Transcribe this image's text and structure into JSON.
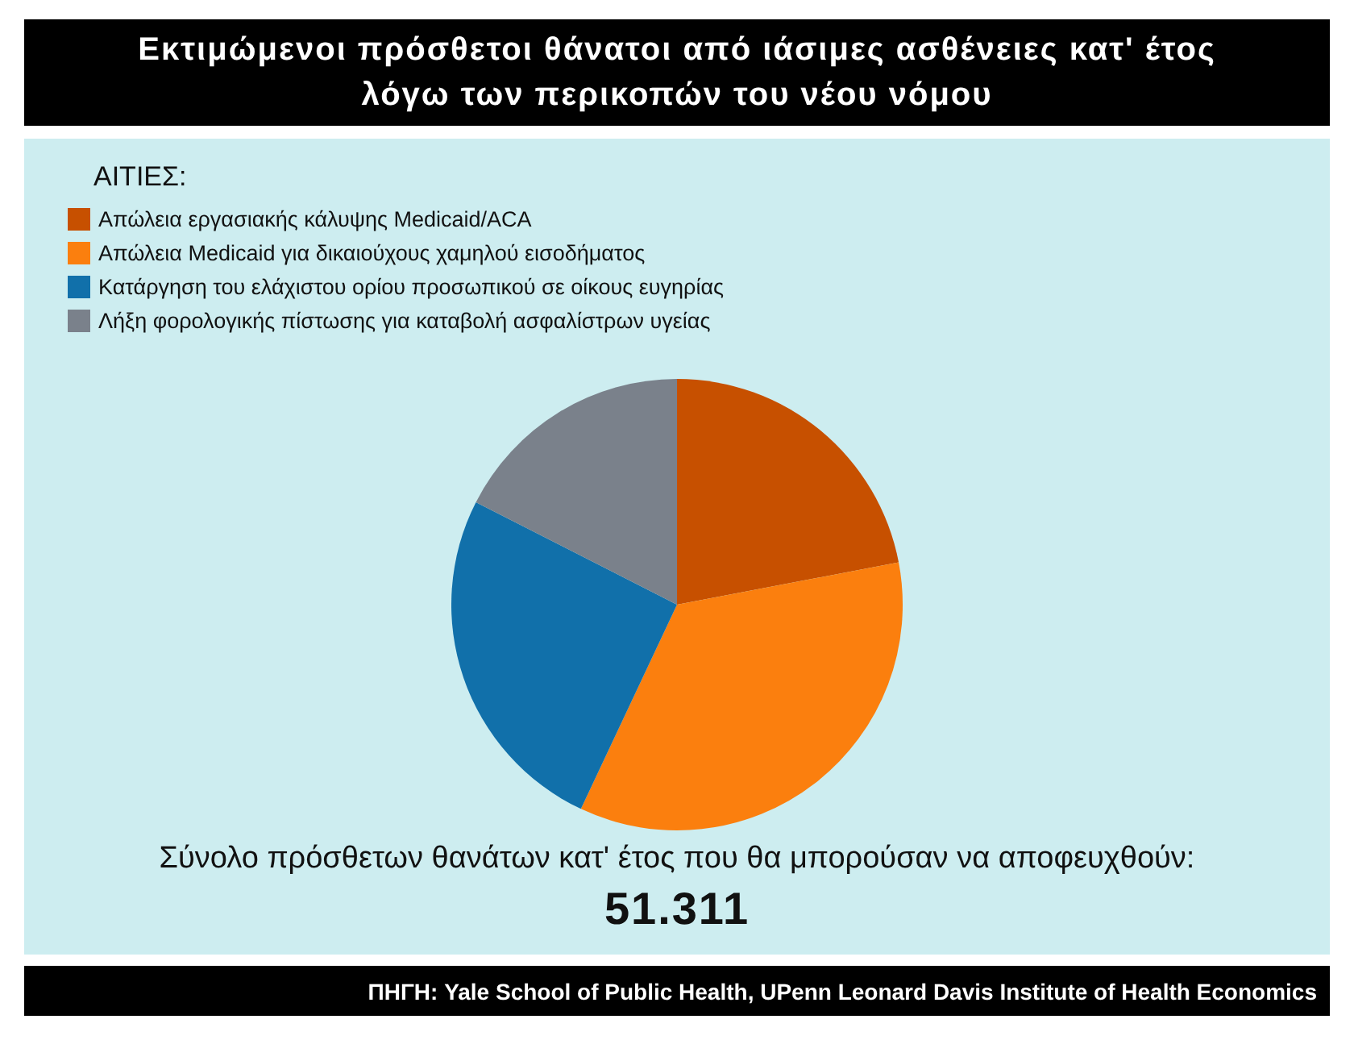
{
  "chart_data": {
    "type": "pie",
    "title": "Εκτιμώμενοι πρόσθετοι θάνατοι από ιάσιμες ασθένειες κατ' έτος λόγω των περικοπών του νέου νόμου",
    "legend_title": "ΑΙΤΙΕΣ:",
    "legend": "top left",
    "categories": [
      "Απώλεια εργασιακής κάλυψης Medicaid/ACA",
      "Απώλεια Medicaid για δικαιούχους χαμηλού εισοδήματος",
      "Κατάργηση του ελάχιστου ορίου προσωπικού σε οίκους ευγηρίας",
      "Λήξη φορολογικής πίστωσης για καταβολή ασφαλίστρων υγείας"
    ],
    "values": [
      22,
      35,
      25.5,
      17.5
    ],
    "colors": [
      "#c75000",
      "#fb7f0e",
      "#1170aa",
      "#7a818b"
    ],
    "annotations": [
      "Σύνολο πρόσθετων θανάτων κατ' έτος που θα μπορούσαν να αποφευχθούν:",
      "51.311",
      "ΠΗΓΗ: Yale School of Public Health, UPenn Leonard Davis Institute of Health Economics"
    ]
  }
}
